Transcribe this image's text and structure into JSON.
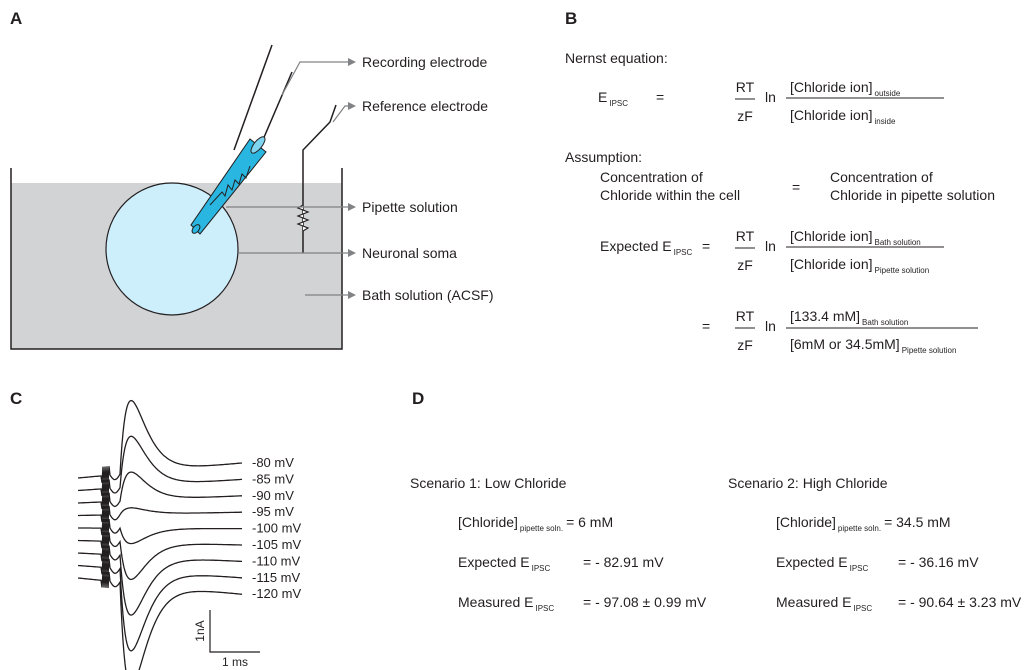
{
  "panel_a": {
    "label": "A",
    "callouts": [
      "Recording electrode",
      "Reference electrode",
      "Pipette solution",
      "Neuronal soma",
      "Bath solution (ACSF)"
    ]
  },
  "panel_b": {
    "label": "B",
    "nernst_heading": "Nernst equation:",
    "e_symbol": "E",
    "e_sub": "IPSC",
    "equals": "=",
    "rt": "RT",
    "zf": "zF",
    "ln": "ln",
    "chloride_ion": "[Chloride ion]",
    "outside_sub": "outside",
    "inside_sub": "inside",
    "assumption_heading": "Assumption:",
    "assumption_left": [
      "Concentration of",
      "Chloride within the cell"
    ],
    "assumption_right": [
      "Concentration of",
      "Chloride in pipette solution"
    ],
    "expected": "Expected E",
    "bath_sub": "Bath solution",
    "pipette_sub": "Pipette solution",
    "bath_value": "[133.4 mM]",
    "pipette_value": "[6mM or 34.5mM]"
  },
  "panel_c": {
    "label": "C",
    "trace_labels": [
      "-80 mV",
      "-85 mV",
      "-90 mV",
      "-95 mV",
      "-100 mV",
      "-105 mV",
      "-110 mV",
      "-115 mV",
      "-120 mV"
    ],
    "trace_label_colors": [
      "#999999",
      "#999999",
      "#999999",
      "#111111",
      "#111111",
      "#999999",
      "#999999",
      "#999999",
      "#999999"
    ],
    "scale_current": "1nA",
    "scale_time": "1 ms"
  },
  "panel_d": {
    "label": "D",
    "scenarios": [
      {
        "title": "Scenario 1: Low Chloride",
        "chloride": "[Chloride]",
        "chloride_sub": "pipette soln.",
        "chloride_value": "= 6 mM",
        "expected": "Expected E",
        "expected_sub": "IPSC",
        "expected_value": "= - 82.91 mV",
        "measured": "Measured E",
        "measured_sub": "IPSC",
        "measured_value": "= - 97.08  ± 0.99 mV"
      },
      {
        "title": "Scenario 2: High Chloride",
        "chloride": "[Chloride]",
        "chloride_sub": "pipette soln.",
        "chloride_value": "= 34.5 mM",
        "expected": "Expected E",
        "expected_sub": "IPSC",
        "expected_value": "= - 36.16 mV",
        "measured": "Measured E",
        "measured_sub": "IPSC",
        "measured_value": "= - 90.64 ± 3.23 mV"
      }
    ]
  }
}
